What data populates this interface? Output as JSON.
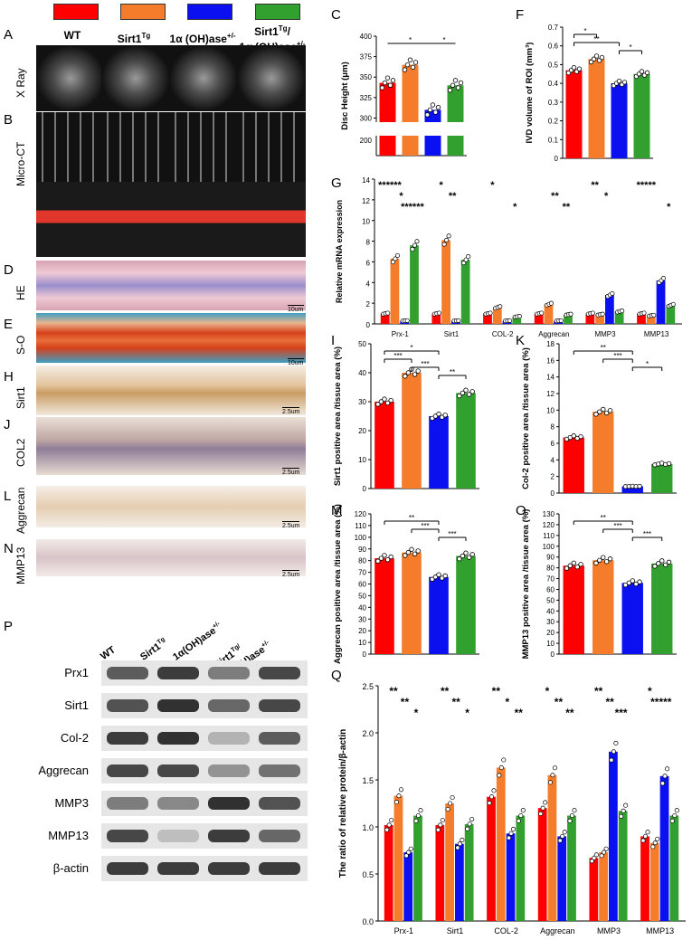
{
  "legend": {
    "groups": [
      {
        "name": "WT",
        "color": "#ff0000"
      },
      {
        "name": "Sirt1",
        "sup": "Tg",
        "color": "#f47c2a"
      },
      {
        "name": "1α (OH)ase",
        "sup": "+/-",
        "color": "#0a10f0"
      },
      {
        "name": "Sirt1",
        "sup": "Tg",
        "name2": "1α (OH)ase",
        "sup2": "+/-",
        "color": "#32a02e"
      }
    ]
  },
  "panels": {
    "A": "A",
    "B": "B",
    "C": "C",
    "D": "D",
    "E": "E",
    "F": "F",
    "G": "G",
    "H": "H",
    "I": "I",
    "J": "J",
    "K": "K",
    "L": "L",
    "M": "M",
    "N": "N",
    "O": "O",
    "P": "P",
    "Q": "Q"
  },
  "row_labels": {
    "xray": "X Ray",
    "microct": "Micro-CT",
    "he": "HE",
    "so": "S-O",
    "sirt1": "Sirt1",
    "col2": "COL2",
    "aggrecan": "Aggrecan",
    "mmp13": "MMP13"
  },
  "scale_bars": {
    "he": "10um",
    "so": "10um",
    "ihc": "2.5um"
  },
  "blot": {
    "headers": [
      "WT",
      "Sirt1",
      "1α(OH)ase",
      "Sirt1"
    ],
    "header_sup": [
      "",
      "Tg",
      "+/-",
      "Tg/"
    ],
    "header4_line2": "1α(OH)ase",
    "header4_sup2": "+/-",
    "rows": [
      "Prx1",
      "Sirt1",
      "Col-2",
      "Aggrecan",
      "MMP3",
      "MMP13",
      "β-actin"
    ]
  },
  "chart_data": [
    {
      "id": "C",
      "type": "bar",
      "ylabel": "Disc Height (μm)",
      "ylim": [
        200,
        400
      ],
      "axis_break": [
        205,
        295
      ],
      "yticks": [
        200,
        300,
        325,
        350,
        375,
        400
      ],
      "categories": [
        "WT",
        "Sirt1Tg",
        "1α(OH)ase+/-",
        "Sirt1Tg/1α(OH)ase+/-"
      ],
      "values": [
        343,
        365,
        310,
        340
      ],
      "sig": [
        {
          "from": 0,
          "to": 2,
          "label": "*"
        },
        {
          "from": 2,
          "to": 3,
          "label": "*"
        }
      ]
    },
    {
      "id": "F",
      "type": "bar",
      "ylabel": "IVD volume of ROI (mm³)",
      "ylim": [
        0,
        0.7
      ],
      "yticks": [
        0,
        0.1,
        0.2,
        0.3,
        0.4,
        0.5,
        0.6,
        0.7
      ],
      "values": [
        0.47,
        0.53,
        0.4,
        0.45
      ],
      "sig": [
        {
          "from": 0,
          "to": 1,
          "label": "*"
        },
        {
          "from": 0,
          "to": 2,
          "label": "**"
        },
        {
          "from": 2,
          "to": 3,
          "label": "*"
        }
      ]
    },
    {
      "id": "G",
      "type": "bar",
      "ylabel": "Relative mRNA expression",
      "ylim": [
        0,
        14
      ],
      "yticks": [
        0,
        2,
        4,
        6,
        8,
        10,
        12,
        14
      ],
      "categories": [
        "Prx-1",
        "Sirt1",
        "COL-2",
        "Aggrecan",
        "MMP3",
        "MMP13"
      ],
      "series": [
        {
          "values": [
            1.0,
            1.0,
            1.0,
            1.0,
            1.0,
            1.0
          ]
        },
        {
          "values": [
            6.3,
            8.1,
            1.6,
            1.9,
            0.9,
            0.8
          ]
        },
        {
          "values": [
            0.3,
            0.3,
            0.3,
            0.3,
            2.8,
            4.2
          ]
        },
        {
          "values": [
            7.6,
            6.2,
            0.7,
            0.9,
            1.2,
            1.8
          ]
        }
      ],
      "sig_labels": [
        "******",
        "*",
        "******",
        "*",
        "**",
        "*",
        "*",
        "**",
        "**",
        "**",
        "*",
        "*",
        "*****"
      ]
    },
    {
      "id": "I",
      "type": "bar",
      "ylabel": "Sirt1 positive area /tissue area (%)",
      "ylim": [
        0,
        50
      ],
      "yticks": [
        0,
        10,
        20,
        30,
        40,
        50
      ],
      "values": [
        30,
        40,
        25,
        33
      ],
      "sig": [
        {
          "from": 0,
          "to": 2,
          "label": "*"
        },
        {
          "from": 0,
          "to": 1,
          "label": "***"
        },
        {
          "from": 1,
          "to": 2,
          "label": "***"
        },
        {
          "from": 2,
          "to": 3,
          "label": "**"
        }
      ]
    },
    {
      "id": "K",
      "type": "bar",
      "ylabel": "Col-2 positive area /tissue area (%)",
      "ylim": [
        0,
        18
      ],
      "yticks": [
        0,
        2,
        4,
        6,
        8,
        10,
        12,
        14,
        16,
        18
      ],
      "values": [
        6.7,
        9.8,
        0.8,
        3.5
      ],
      "sig": [
        {
          "from": 0,
          "to": 2,
          "label": "**"
        },
        {
          "from": 1,
          "to": 2,
          "label": "***"
        },
        {
          "from": 2,
          "to": 3,
          "label": "*"
        }
      ]
    },
    {
      "id": "M",
      "type": "bar",
      "ylabel": "Aggrecan positive area /tissue area (%)",
      "ylim": [
        0,
        120
      ],
      "yticks": [
        0,
        10,
        20,
        30,
        40,
        50,
        60,
        70,
        80,
        90,
        100,
        110,
        120
      ],
      "values": [
        82,
        87,
        66,
        84
      ],
      "sig": [
        {
          "from": 0,
          "to": 2,
          "label": "**"
        },
        {
          "from": 1,
          "to": 2,
          "label": "***"
        },
        {
          "from": 2,
          "to": 3,
          "label": "***"
        }
      ]
    },
    {
      "id": "O",
      "type": "bar",
      "ylabel": "MMP13 positive area /tissue area (%)",
      "ylim": [
        0,
        130
      ],
      "yticks": [
        0,
        10,
        20,
        30,
        40,
        50,
        60,
        70,
        80,
        90,
        100,
        110,
        120,
        130
      ],
      "values": [
        82,
        87,
        66,
        84
      ],
      "sig": [
        {
          "from": 0,
          "to": 2,
          "label": "**"
        },
        {
          "from": 1,
          "to": 2,
          "label": "***"
        },
        {
          "from": 2,
          "to": 3,
          "label": "***"
        }
      ]
    },
    {
      "id": "Q",
      "type": "bar",
      "ylabel": "The ratio of relative protein/β-actin",
      "ylim": [
        0,
        2.5
      ],
      "yticks": [
        0.0,
        0.5,
        1.0,
        1.5,
        2.0,
        2.5
      ],
      "categories": [
        "Prx-1",
        "Sirt1",
        "COL-2",
        "Aggrecan",
        "MMP3",
        "MMP13"
      ],
      "series": [
        {
          "values": [
            1.02,
            1.02,
            1.32,
            1.2,
            0.67,
            0.9
          ]
        },
        {
          "values": [
            1.33,
            1.25,
            1.63,
            1.55,
            0.73,
            0.83
          ]
        },
        {
          "values": [
            0.73,
            0.82,
            0.93,
            0.9,
            1.8,
            1.54
          ]
        },
        {
          "values": [
            1.12,
            1.03,
            1.12,
            1.12,
            1.17,
            1.12
          ]
        }
      ],
      "sig_labels": [
        "**",
        "**",
        "*",
        "**",
        "**",
        "*",
        "**",
        "*",
        "**",
        "*",
        "**",
        "**",
        "**",
        "**",
        "***",
        "*",
        "*****"
      ]
    }
  ]
}
